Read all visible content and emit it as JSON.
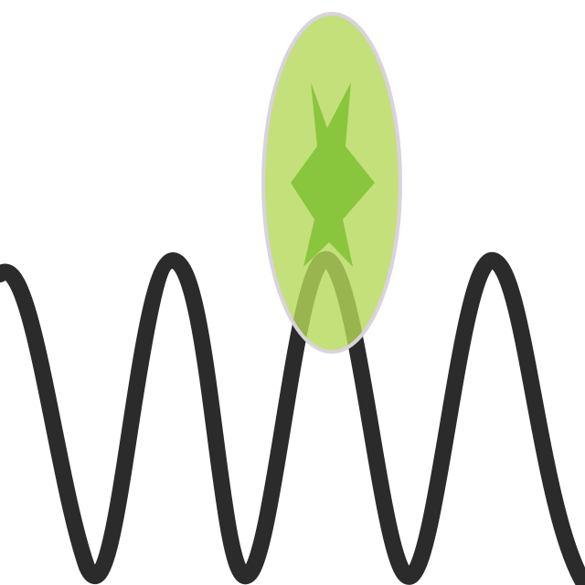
{
  "icon": {
    "name": "node-wave-icon",
    "colors": {
      "background": "#ffffff",
      "wave_stroke": "#2b2b2b",
      "highlight_fill": "#b5d85a",
      "highlight_outline": "#d9d2df",
      "star_fill": "#86c43a"
    }
  }
}
